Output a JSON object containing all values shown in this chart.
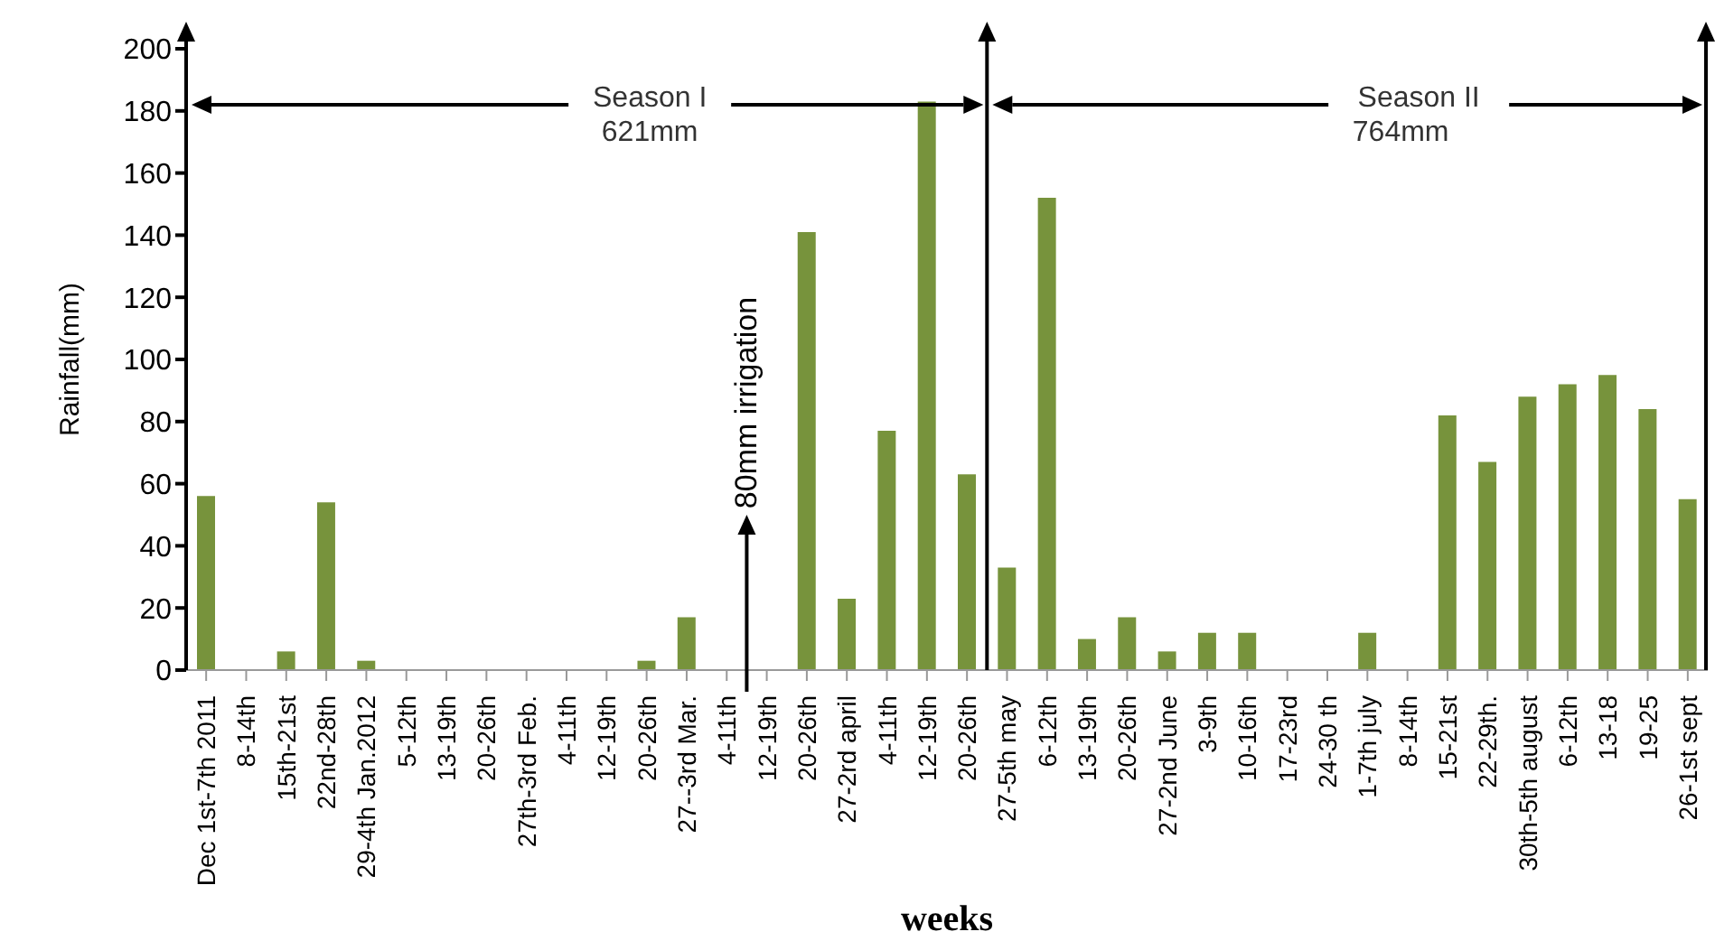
{
  "chart_data": {
    "type": "bar",
    "xlabel": "weeks",
    "ylabel": "Rainfall(mm)",
    "categories": [
      "Dec 1st-7th 2011",
      "8-14th",
      "15th-21st",
      "22nd-28th",
      "29-4th Jan.2012",
      "5-12th",
      "13-19th",
      "20-26th",
      "27th-3rd Feb.",
      "4-11th",
      "12-19th",
      "20-26th",
      "27--3rd Mar.",
      "4-11th",
      "12-19th",
      "20-26th",
      "27-2rd april",
      "4-11th",
      "12-19th",
      "20-26th",
      "27-5th may",
      "6-12th",
      "13-19th",
      "20-26th",
      "27-2nd June",
      "3-9th",
      "10-16th",
      "17-23rd",
      "24-30 th",
      "1-7th july",
      "8-14th",
      "15-21st",
      "22-29th.",
      "30th-5th august",
      "6-12th",
      "13-18",
      "19-25",
      "26-1st sept"
    ],
    "values": [
      56,
      0,
      6,
      54,
      3,
      0,
      0,
      0,
      0,
      0,
      0,
      3,
      17,
      0,
      0,
      141,
      23,
      77,
      183,
      63,
      33,
      152,
      10,
      17,
      6,
      12,
      12,
      0,
      0,
      12,
      0,
      82,
      67,
      88,
      92,
      95,
      84,
      55
    ],
    "color": "#77933c",
    "ylim": [
      0,
      200
    ],
    "yticks": [
      0,
      20,
      40,
      60,
      80,
      100,
      120,
      140,
      160,
      180,
      200
    ],
    "grid": false,
    "legend": false,
    "annotations": [
      "Season I",
      "621mm",
      "Season II",
      "764mm",
      "80mm irrigation"
    ]
  }
}
